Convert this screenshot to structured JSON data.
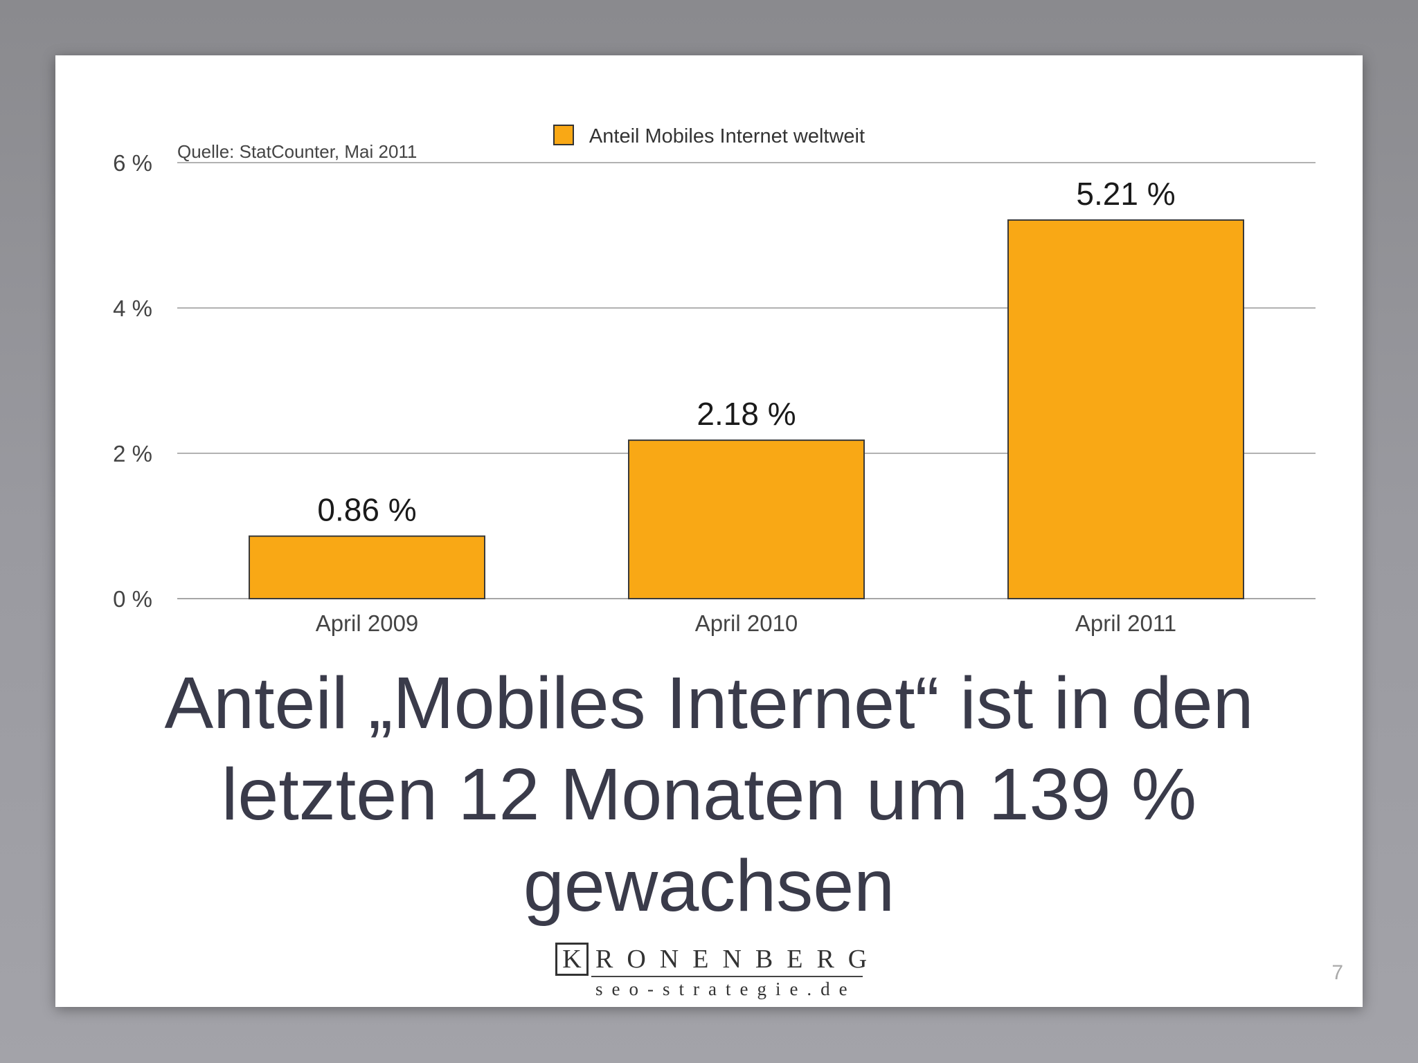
{
  "slide": {
    "headline": "Anteil „Mobiles Internet“ ist in den letzten 12 Monaten um 139 % gewachsen",
    "source_note": "Quelle: StatCounter, Mai 2011",
    "page_number": "7",
    "logo": {
      "mark_letter": "K",
      "mark_rest": "RONENBERG",
      "subline": "seo-strategie.de"
    }
  },
  "chart_data": {
    "type": "bar",
    "categories": [
      "April 2009",
      "April 2010",
      "April 2011"
    ],
    "series": [
      {
        "name": "Anteil Mobiles Internet weltweit",
        "values": [
          0.86,
          2.18,
          5.21
        ],
        "labels": [
          "0.86 %",
          "2.18 %",
          "5.21 %"
        ],
        "color": "#f9a815"
      }
    ],
    "ylim": [
      0,
      6
    ],
    "yticks": [
      0,
      2,
      4,
      6
    ],
    "ytick_labels": [
      "0 %",
      "2 %",
      "4 %",
      "6 %"
    ],
    "grid": true,
    "legend_position": "top-center"
  }
}
